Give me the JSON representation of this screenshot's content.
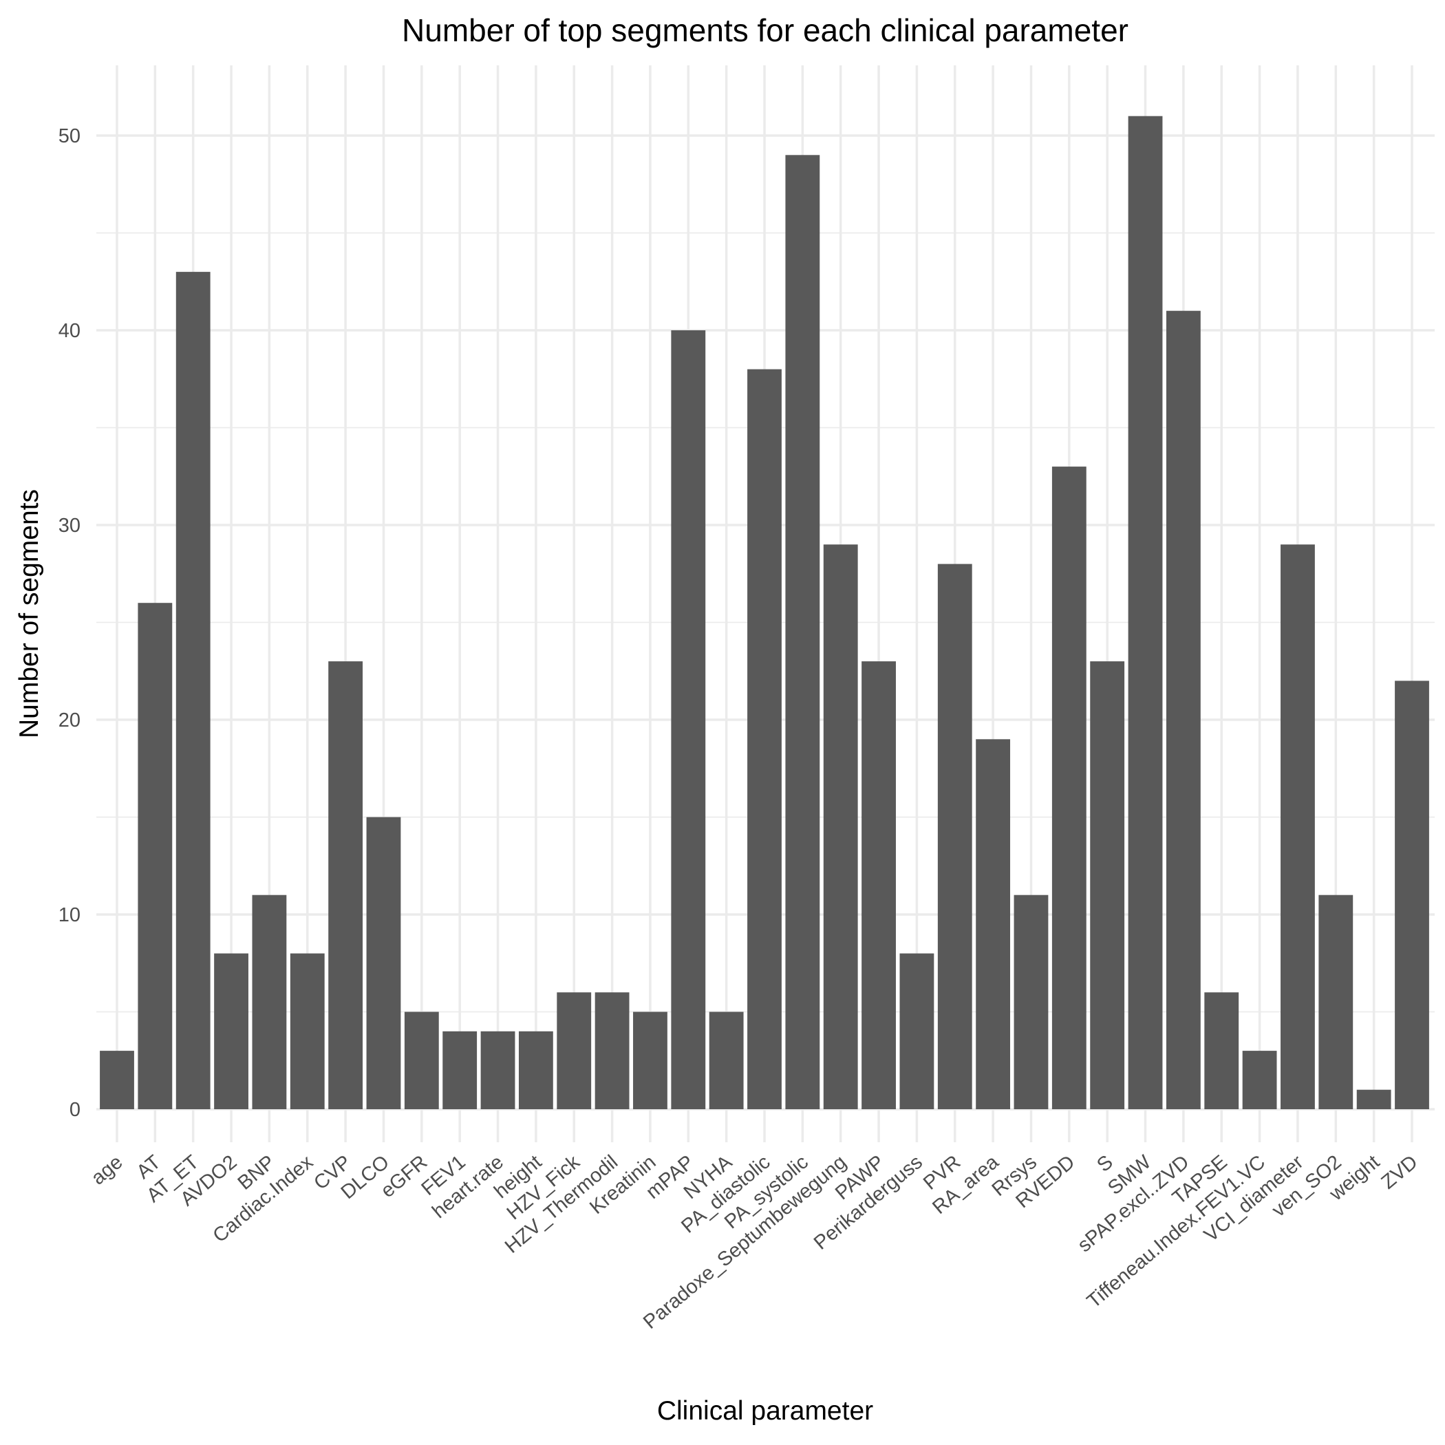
{
  "chart_data": {
    "type": "bar",
    "title": "Number of top segments for each clinical parameter",
    "xlabel": "Clinical parameter",
    "ylabel": "Number of segments",
    "ylim": [
      0,
      53.5
    ],
    "yticks": [
      0,
      10,
      20,
      30,
      40,
      50
    ],
    "grid": true,
    "legend": "none",
    "bar_color": "#595959",
    "categories": [
      "age",
      "AT",
      "AT_ET",
      "AVDO2",
      "BNP",
      "Cardiac.Index",
      "CVP",
      "DLCO",
      "eGFR",
      "FEV1",
      "heart.rate",
      "height",
      "HZV_Fick",
      "HZV_Thermodil",
      "Kreatinin",
      "mPAP",
      "NYHA",
      "PA_diastolic",
      "PA_systolic",
      "Paradoxe_Septumbewegung",
      "PAWP",
      "Perikarderguss",
      "PVR",
      "RA_area",
      "Rrsys",
      "RVEDD",
      "S",
      "SMW",
      "sPAP.excl..ZVD",
      "TAPSE",
      "Tiffeneau.Index.FEV1.VC",
      "VCI_diameter",
      "ven_SO2",
      "weight",
      "ZVD"
    ],
    "values": [
      3,
      26,
      43,
      8,
      11,
      8,
      23,
      15,
      5,
      4,
      4,
      4,
      6,
      6,
      5,
      40,
      5,
      38,
      49,
      29,
      23,
      8,
      28,
      19,
      11,
      33,
      23,
      51,
      41,
      6,
      3,
      29,
      11,
      1,
      22
    ]
  }
}
